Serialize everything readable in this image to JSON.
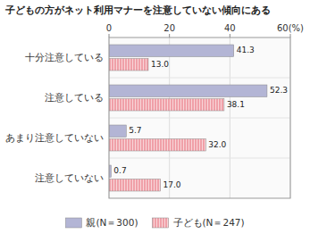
{
  "chart_data": {
    "type": "bar",
    "orientation": "horizontal",
    "title": "子どもの方がネット利用マナーを注意していない傾向にある",
    "categories": [
      "十分注意している",
      "注意している",
      "あまり注意していない",
      "注意していない"
    ],
    "series": [
      {
        "name": "親(N＝300)",
        "color": "#b3b5d5",
        "values": [
          41.3,
          52.3,
          5.7,
          0.7
        ]
      },
      {
        "name": "子ども(N＝247)",
        "color": "#f0a0a8",
        "values": [
          13.0,
          38.1,
          32.0,
          17.0
        ],
        "value_labels": [
          "13.0",
          "38.1",
          "32.0",
          "17.0"
        ]
      }
    ],
    "xlim": [
      0,
      60
    ],
    "xticks": [
      0,
      20,
      40,
      {
        "value": 60,
        "label": "60(%)"
      }
    ],
    "grid": true,
    "data_labels": true,
    "legend": "bottom"
  }
}
